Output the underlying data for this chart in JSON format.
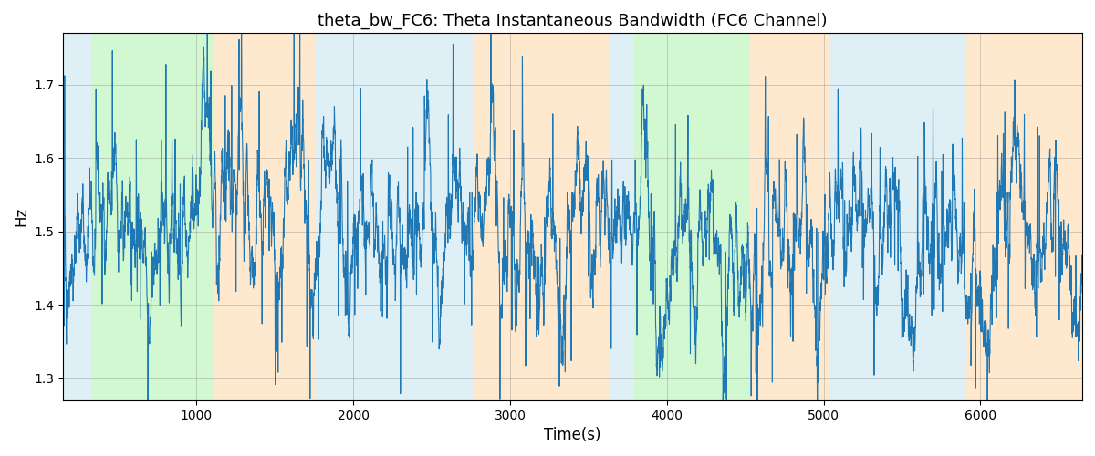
{
  "title": "theta_bw_FC6: Theta Instantaneous Bandwidth (FC6 Channel)",
  "xlabel": "Time(s)",
  "ylabel": "Hz",
  "xlim": [
    150,
    6650
  ],
  "ylim": [
    1.27,
    1.77
  ],
  "yticks": [
    1.3,
    1.4,
    1.5,
    1.6,
    1.7
  ],
  "xticks": [
    1000,
    2000,
    3000,
    4000,
    5000,
    6000
  ],
  "line_color": "#1f77b4",
  "figsize": [
    12.0,
    5.0
  ],
  "dpi": 100,
  "background_regions": [
    {
      "xmin": 150,
      "xmax": 330,
      "color": "#add8e6",
      "alpha": 0.4
    },
    {
      "xmin": 330,
      "xmax": 1110,
      "color": "#90ee90",
      "alpha": 0.4
    },
    {
      "xmin": 1110,
      "xmax": 1760,
      "color": "#ffd59e",
      "alpha": 0.5
    },
    {
      "xmin": 1760,
      "xmax": 2760,
      "color": "#add8e6",
      "alpha": 0.4
    },
    {
      "xmin": 2760,
      "xmax": 3640,
      "color": "#ffd59e",
      "alpha": 0.5
    },
    {
      "xmin": 3640,
      "xmax": 3790,
      "color": "#add8e6",
      "alpha": 0.4
    },
    {
      "xmin": 3790,
      "xmax": 4530,
      "color": "#90ee90",
      "alpha": 0.4
    },
    {
      "xmin": 4530,
      "xmax": 5030,
      "color": "#ffd59e",
      "alpha": 0.5
    },
    {
      "xmin": 5030,
      "xmax": 5910,
      "color": "#add8e6",
      "alpha": 0.4
    },
    {
      "xmin": 5910,
      "xmax": 6650,
      "color": "#ffd59e",
      "alpha": 0.5
    }
  ],
  "seed": 42,
  "n_points": 6500,
  "time_start": 150,
  "time_end": 6650
}
